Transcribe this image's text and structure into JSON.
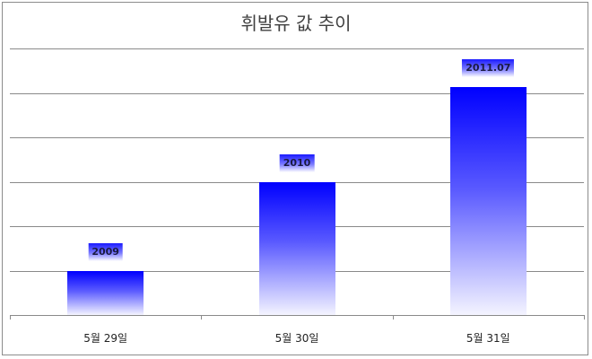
{
  "chart_data": {
    "type": "bar",
    "title": "휘발유 값 추이",
    "categories": [
      "5월 29일",
      "5월 30일",
      "5월 31일"
    ],
    "values": [
      2009,
      2010,
      2011.07
    ],
    "data_labels": [
      "2009",
      "2010",
      "2011.07"
    ],
    "xlabel": "",
    "ylabel": "",
    "ylim": [
      2008.5,
      2011.5
    ],
    "y_step": 0.5,
    "y_tick_labels_visible": false,
    "grid": true,
    "legend": "none",
    "bar_color": "#0000ff",
    "bar_fill": "vertical gradient blue to white"
  },
  "chart": {
    "title": "휘발유 값 추이",
    "bars": [
      {
        "category": "5월 29일",
        "value": 2009,
        "label": "2009"
      },
      {
        "category": "5월 30일",
        "value": 2010,
        "label": "2010"
      },
      {
        "category": "5월 31일",
        "value": 2011.07,
        "label": "2011.07"
      }
    ]
  }
}
